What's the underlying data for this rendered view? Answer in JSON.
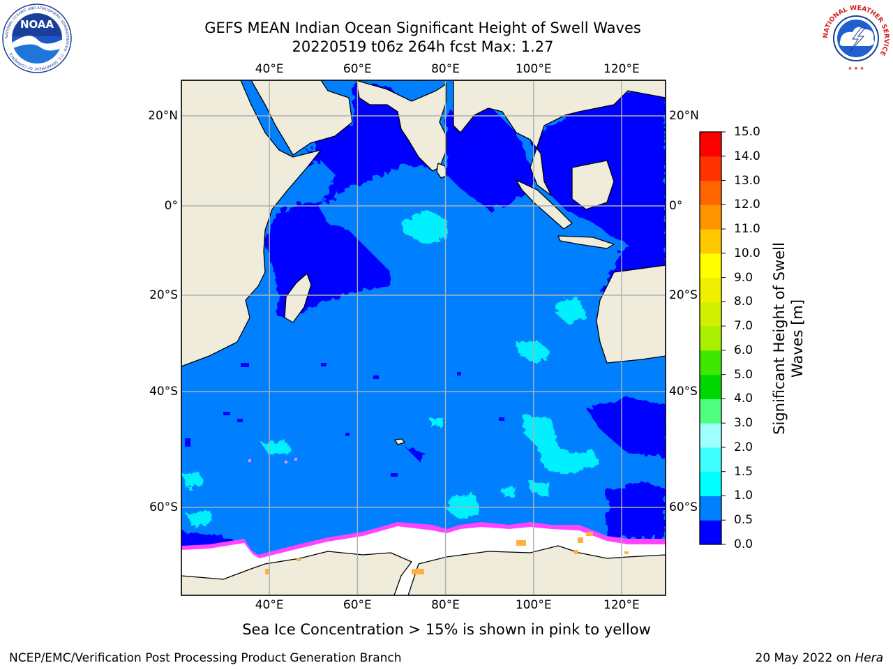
{
  "title": {
    "line1": "GEFS MEAN Indian Ocean Significant Height of Swell Waves",
    "line2": "20220519 t06z 264h fcst   Max: 1.27"
  },
  "map": {
    "region": "Indian Ocean",
    "lon_range": [
      20,
      130
    ],
    "lat_range": [
      -70,
      28
    ],
    "lon_labels": [
      "40°E",
      "60°E",
      "80°E",
      "100°E",
      "120°E"
    ],
    "lat_labels": [
      "20°N",
      "0°",
      "20°S",
      "40°S",
      "60°S"
    ],
    "gridlines": true,
    "land_color": "#efecdc",
    "ocean_colors": {
      "dark_blue": "#0000ff",
      "mid_blue": "#0080ff",
      "cyan": "#00ffff",
      "light_cyan": "#4dffff",
      "sea_ice_white": "#ffffff",
      "sea_ice_pink": "#ff55ff",
      "sea_ice_orange": "#ffb040"
    }
  },
  "colorbar": {
    "label": "Significant Height of Swell Waves [m]",
    "ticks": [
      "0.0",
      "0.5",
      "1.0",
      "1.5",
      "2.0",
      "3.0",
      "4.0",
      "5.0",
      "6.0",
      "7.0",
      "8.0",
      "9.0",
      "10.0",
      "11.0",
      "12.0",
      "13.0",
      "14.0",
      "15.0"
    ],
    "colors": [
      "#0000ff",
      "#0080ff",
      "#00ffff",
      "#40ffff",
      "#a0ffff",
      "#50ff80",
      "#00d800",
      "#40e800",
      "#a8f000",
      "#d0f000",
      "#f0f000",
      "#ffff00",
      "#ffc800",
      "#ff9600",
      "#ff6400",
      "#ff3200",
      "#ff0000"
    ]
  },
  "logos": {
    "noaa_text": "NOAA",
    "noaa_ring_text": "NATIONAL OCEANIC AND ATMOSPHERIC ADMINISTRATION · U.S. DEPARTMENT OF COMMERCE",
    "nws_ring_text": "NATIONAL WEATHER SERVICE"
  },
  "footer": {
    "sea_ice_note": "Sea Ice Concentration > 15% is shown in pink to yellow",
    "credits": "NCEP/EMC/Verification Post Processing Product Generation Branch",
    "date": "20 May 2022 on ",
    "machine": "Hera"
  }
}
